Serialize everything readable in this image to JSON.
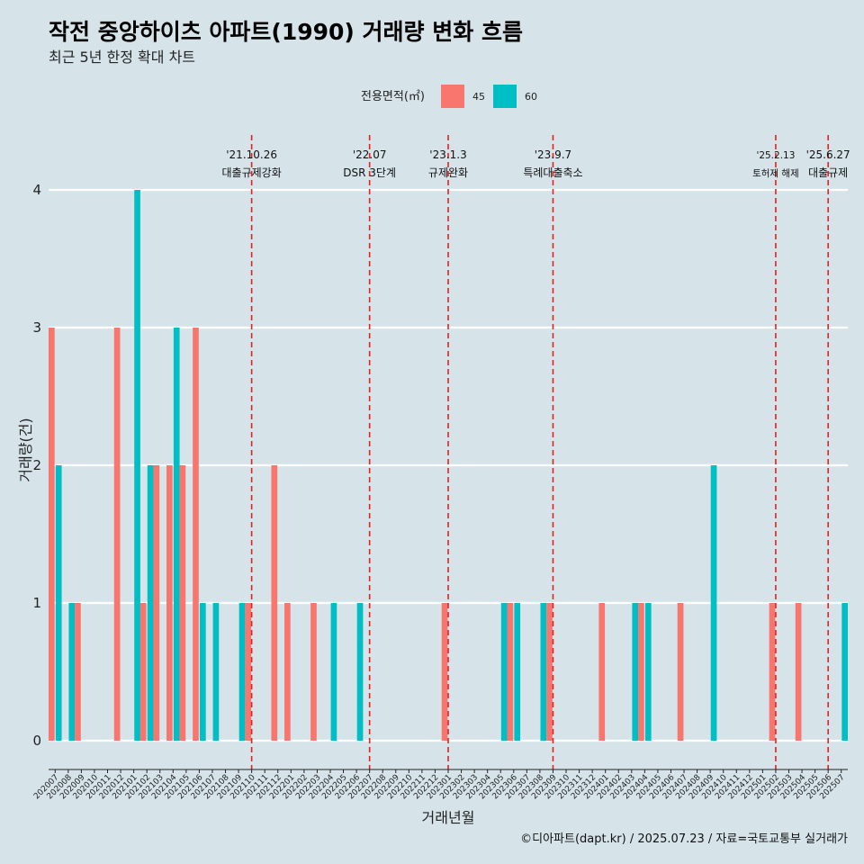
{
  "chart_data": {
    "type": "bar",
    "title": "작전 중앙하이츠 아파트(1990) 거래량 변화 흐름",
    "subtitle": "최근 5년 한정 확대 차트",
    "xlabel": "거래년월",
    "ylabel": "거래량(건)",
    "caption": "©디아파트(dapt.kr) / 2025.07.23 / 자료=국토교통부 실거래가",
    "legend_title": "전용면적(㎡)",
    "legend_position": "top",
    "ylim": [
      0,
      4
    ],
    "yticks": [
      0,
      1,
      2,
      3,
      4
    ],
    "colors": {
      "45": "#f8766d",
      "60": "#00bfc4",
      "vline": "#e8211f",
      "background": "#d6e4ea",
      "grid": "#ffffff"
    },
    "categories": [
      "202007",
      "202008",
      "202009",
      "202010",
      "202011",
      "202012",
      "202101",
      "202102",
      "202103",
      "202104",
      "202105",
      "202106",
      "202107",
      "202108",
      "202109",
      "202110",
      "202111",
      "202112",
      "202201",
      "202202",
      "202203",
      "202204",
      "202205",
      "202206",
      "202207",
      "202208",
      "202209",
      "202210",
      "202211",
      "202212",
      "202301",
      "202302",
      "202303",
      "202304",
      "202305",
      "202306",
      "202307",
      "202308",
      "202309",
      "202310",
      "202311",
      "202312",
      "202401",
      "202402",
      "202403",
      "202404",
      "202405",
      "202406",
      "202407",
      "202408",
      "202409",
      "202410",
      "202411",
      "202412",
      "202501",
      "202502",
      "202503",
      "202504",
      "202505",
      "202506",
      "202507"
    ],
    "series": [
      {
        "name": "45",
        "values": [
          3,
          0,
          1,
          0,
          0,
          3,
          0,
          1,
          2,
          2,
          2,
          3,
          0,
          0,
          0,
          1,
          0,
          2,
          1,
          0,
          1,
          0,
          0,
          0,
          0,
          0,
          0,
          0,
          0,
          0,
          1,
          0,
          0,
          0,
          0,
          1,
          0,
          0,
          1,
          0,
          0,
          0,
          1,
          0,
          0,
          1,
          0,
          0,
          1,
          0,
          0,
          0,
          0,
          0,
          0,
          1,
          0,
          1,
          0,
          0,
          0
        ]
      },
      {
        "name": "60",
        "values": [
          2,
          1,
          0,
          0,
          0,
          0,
          4,
          2,
          0,
          3,
          0,
          1,
          1,
          0,
          1,
          0,
          0,
          0,
          0,
          0,
          0,
          1,
          0,
          1,
          0,
          0,
          0,
          0,
          0,
          0,
          0,
          0,
          0,
          0,
          1,
          1,
          0,
          1,
          0,
          0,
          0,
          0,
          0,
          0,
          1,
          1,
          0,
          0,
          0,
          0,
          2,
          0,
          0,
          0,
          0,
          0,
          0,
          0,
          0,
          0,
          1
        ]
      }
    ],
    "annotations": [
      {
        "date": "'21.10.26",
        "label": "대출규제강화",
        "category": "202110"
      },
      {
        "date": "'22.07",
        "label": "DSR 3단계",
        "category": "202207"
      },
      {
        "date": "'23.1.3",
        "label": "규제완화",
        "category": "202301"
      },
      {
        "date": "'23.9.7",
        "label": "특례대출축소",
        "category": "202309"
      },
      {
        "date": "'25.2.13",
        "label": "토허제 해제",
        "category": "202502",
        "small": true
      },
      {
        "date": "'25.6.27",
        "label": "대출규제",
        "category": "202506"
      }
    ]
  }
}
